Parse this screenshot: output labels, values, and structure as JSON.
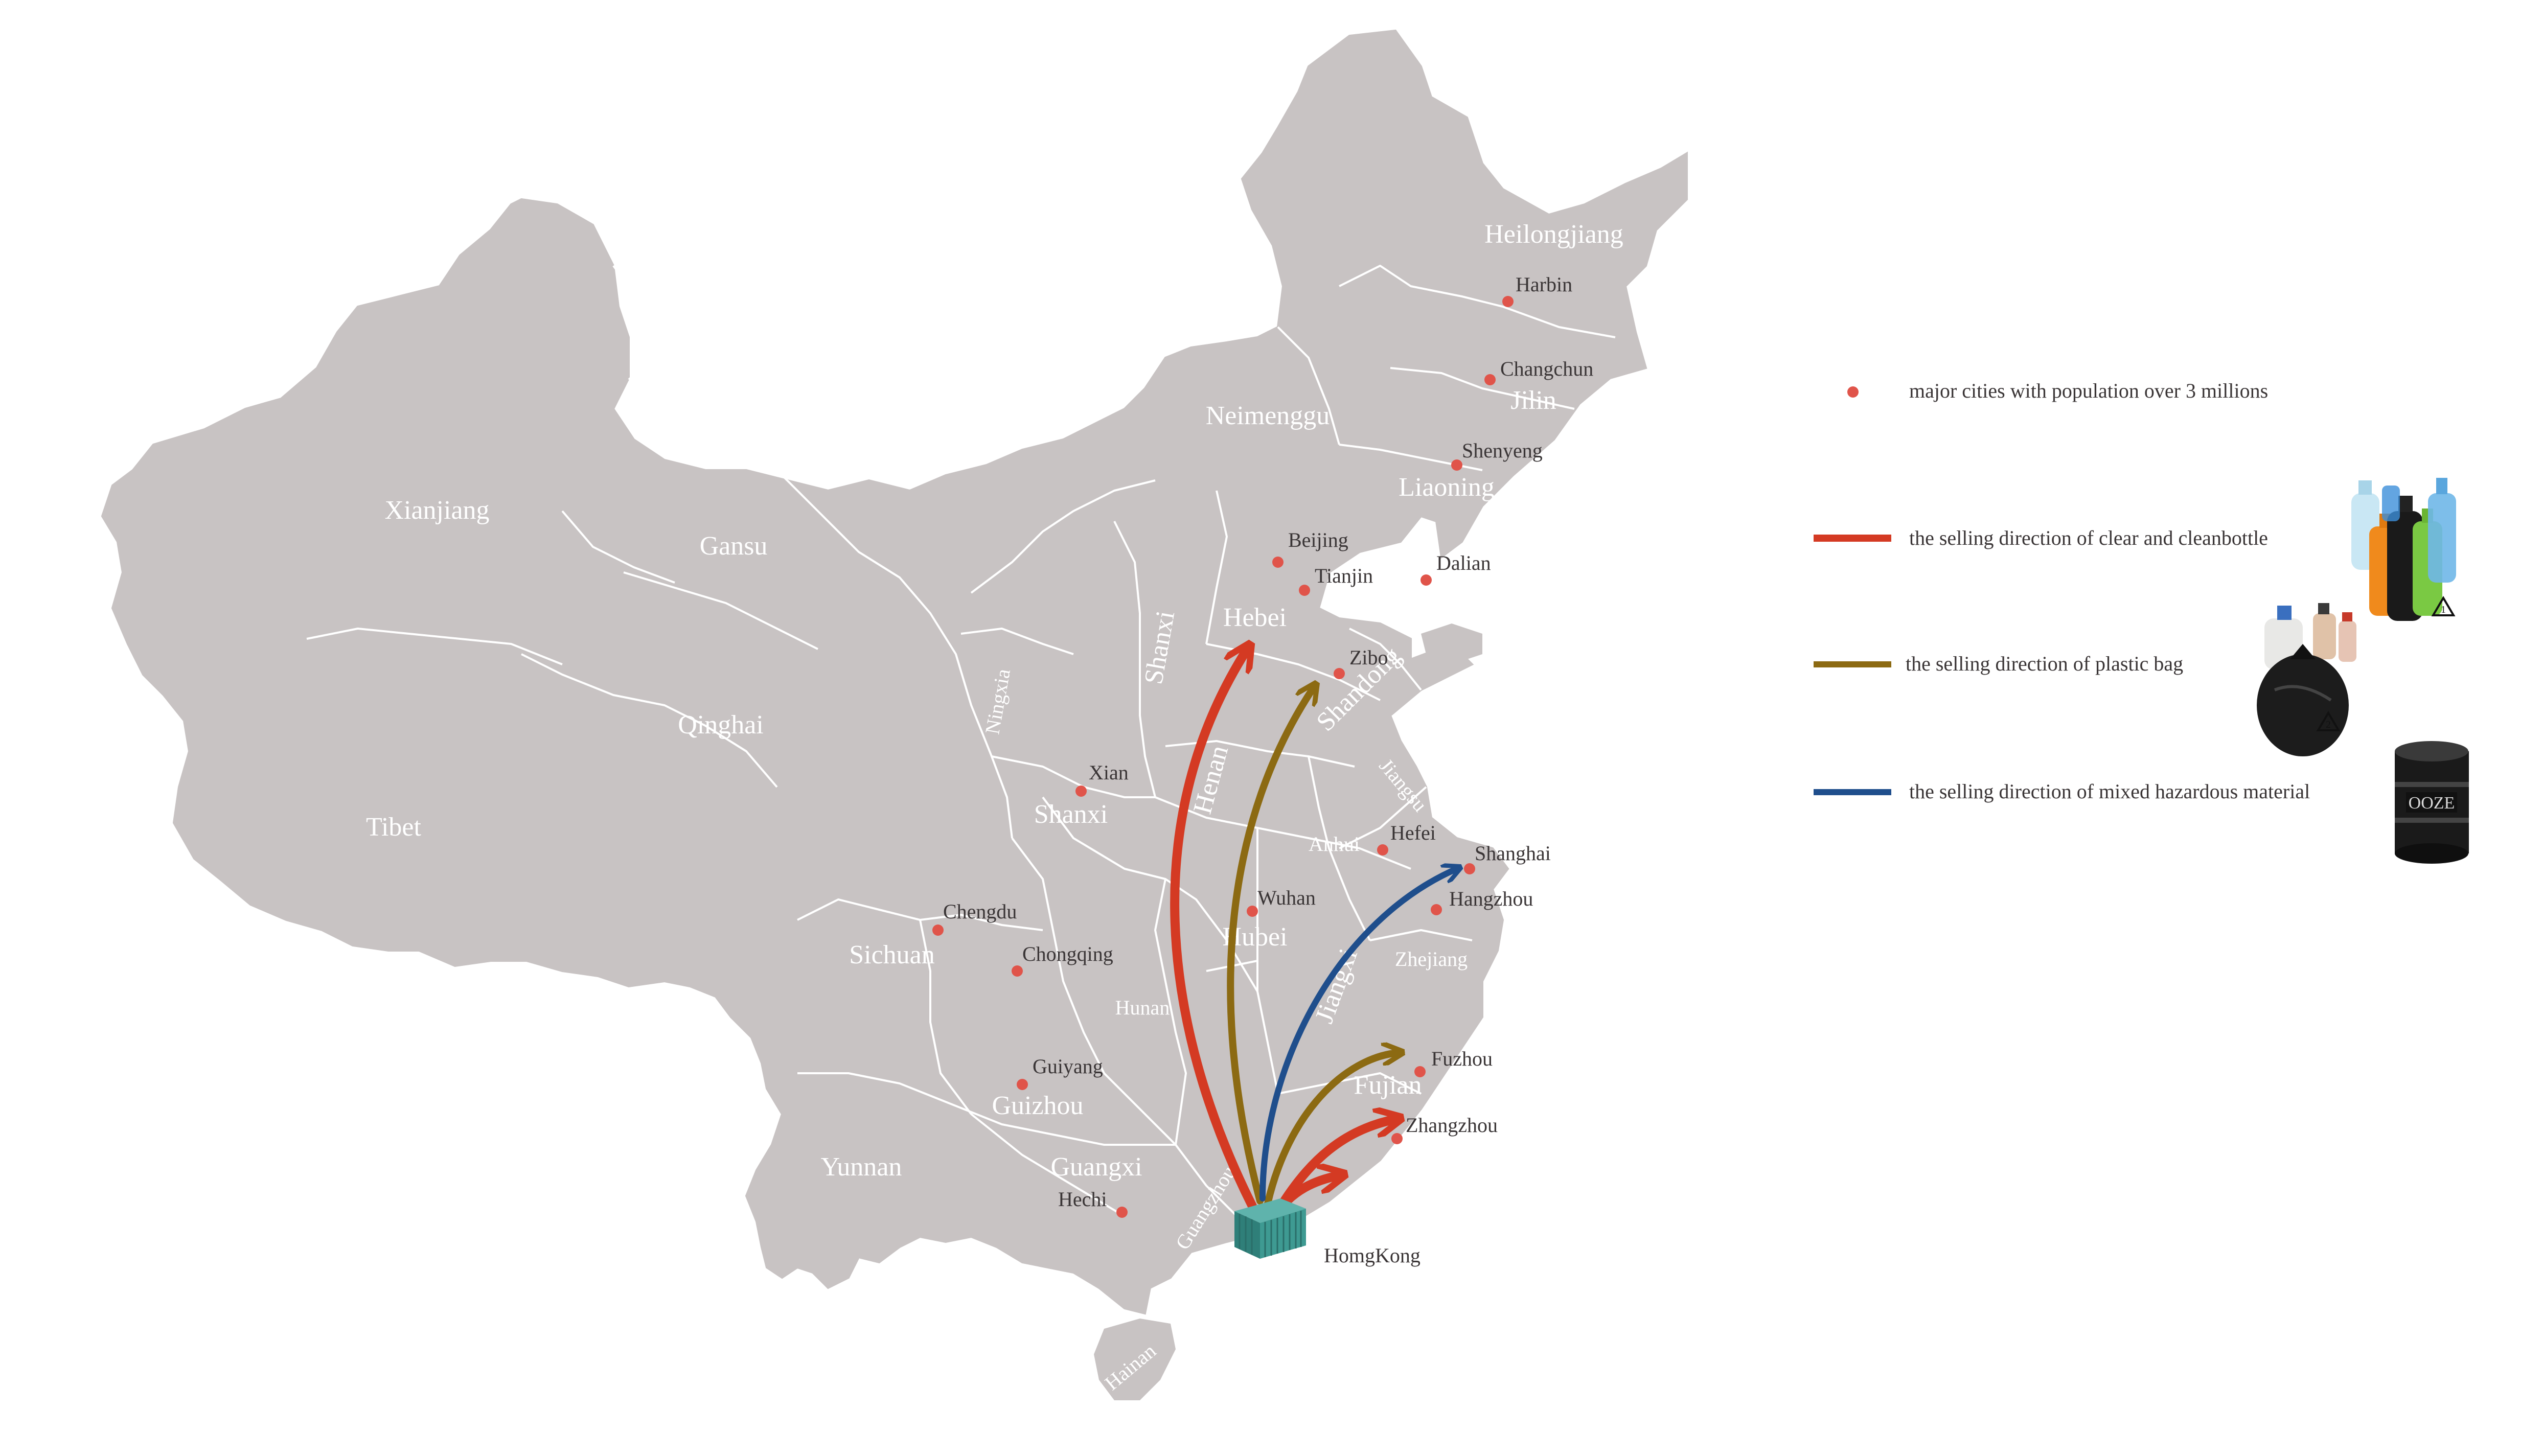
{
  "colors": {
    "land": "#c8c3c3",
    "border": "#ffffff",
    "city_dot": "#e0544a",
    "clear_bottle": "#d43a23",
    "plastic_bag": "#8c6a12",
    "hazardous": "#1f4e8c"
  },
  "provinces": {
    "heilongjiang": "Heilongjiang",
    "jilin": "Jilin",
    "liaoning": "Liaoning",
    "neimenggu": "Neimenggu",
    "xianjiang": "Xianjiang",
    "gansu": "Gansu",
    "qinghai": "Qinghai",
    "tibet": "Tibet",
    "ningxia": "Ningxia",
    "shanxi_north": "Shanxi",
    "hebei": "Hebei",
    "shandong": "Shandong",
    "henan": "Henan",
    "shanxi_south": "Shanxi",
    "jiangsu": "Jiangsu",
    "anhui": "Anhui",
    "sichuan": "Sichuan",
    "hubei": "Hubei",
    "zhejiang": "Zhejiang",
    "hunan": "Hunan",
    "jiangxi": "Jiangxi",
    "fujian": "Fujian",
    "guizhou": "Guizhou",
    "yunnan": "Yunnan",
    "guangxi": "Guangxi",
    "guangzhou": "Guangzhou",
    "hainan": "Hainan"
  },
  "cities": {
    "harbin": "Harbin",
    "changchun": "Changchun",
    "shenyeng": "Shenyeng",
    "beijing": "Beijing",
    "tianjin": "Tianjin",
    "dalian": "Dalian",
    "zibo": "Zibo",
    "xian": "Xian",
    "hefei": "Hefei",
    "shanghai": "Shanghai",
    "hangzhou": "Hangzhou",
    "wuhan": "Wuhan",
    "chengdu": "Chengdu",
    "chongqing": "Chongqing",
    "guiyang": "Guiyang",
    "fuzhou": "Fuzhou",
    "zhangzhou": "Zhangzhou",
    "hechi": "Hechi",
    "homgkong": "HomgKong"
  },
  "legend": {
    "cities": "major cities with population over 3 millions",
    "clear_bottle": "the selling direction of clear and cleanbottle",
    "plastic_bag": "the selling direction of plastic bag",
    "hazardous": "the selling direction of mixed hazardous material",
    "barrel_label": "OOZE"
  },
  "icons": {
    "origin": "shipping-container-icon",
    "bottles": "plastic-bottles-icon",
    "bags": "garbage-bag-icon",
    "barrel": "oil-barrel-icon",
    "recycle_bottle": "recycle-1-icon",
    "recycle_bag": "recycle-2-icon"
  }
}
